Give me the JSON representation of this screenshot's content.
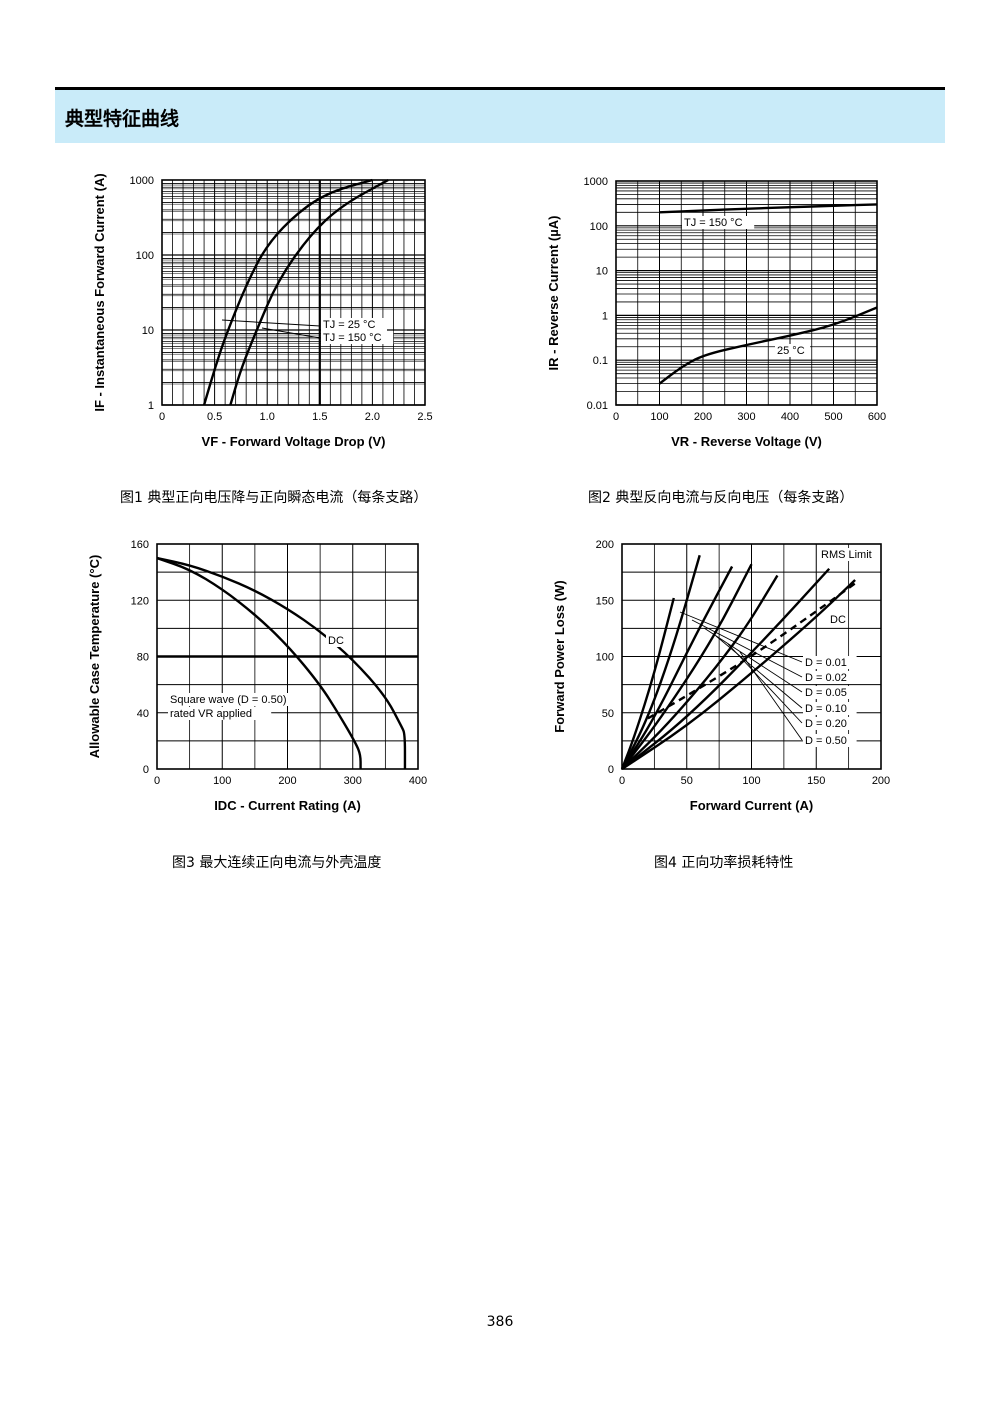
{
  "section_title": "典型特征曲线",
  "page_number": "386",
  "captions": {
    "fig1": "图1  典型正向电压降与正向瞬态电流（每条支路）",
    "fig2": "图2  典型反向电流与反向电压（每条支路）",
    "fig3": "图3  最大连续正向电流与外壳温度",
    "fig4": "图4  正向功率损耗特性"
  },
  "chart_data": [
    {
      "id": "fig1",
      "type": "line",
      "y_scale": "log",
      "xlim": [
        0,
        2.5
      ],
      "ylim": [
        1,
        1000
      ],
      "x_ticks": [
        "0",
        "0.5",
        "1.0",
        "1.5",
        "2.0",
        "2.5"
      ],
      "y_ticks": [
        "1",
        "10",
        "100",
        "1000"
      ],
      "xlabel": "VF - Forward Voltage Drop (V)",
      "ylabel": "IF - Instantaneous Forward Current (A)",
      "annotations": [
        "TJ = 25 °C",
        "TJ = 150 °C"
      ],
      "series": [
        {
          "name": "TJ = 150 °C",
          "x": [
            0.4,
            0.5,
            0.6,
            0.8,
            1.0,
            1.3,
            1.6,
            2.0
          ],
          "y": [
            1,
            3,
            8,
            40,
            140,
            380,
            700,
            1000
          ]
        },
        {
          "name": "TJ = 25 °C",
          "x": [
            0.65,
            0.75,
            0.9,
            1.1,
            1.4,
            1.7,
            2.15
          ],
          "y": [
            1,
            3,
            10,
            45,
            180,
            450,
            1000
          ]
        }
      ]
    },
    {
      "id": "fig2",
      "type": "line",
      "y_scale": "log",
      "xlim": [
        0,
        600
      ],
      "ylim": [
        0.01,
        1000
      ],
      "x_ticks": [
        "0",
        "100",
        "200",
        "300",
        "400",
        "500",
        "600"
      ],
      "y_ticks": [
        "0.01",
        "0.1",
        "1",
        "10",
        "100",
        "1000"
      ],
      "xlabel": "VR - Reverse Voltage (V)",
      "ylabel": "IR - Reverse Current (µA)",
      "annotations": [
        "TJ = 150 °C",
        "25 °C"
      ],
      "series": [
        {
          "name": "TJ = 150 °C",
          "x": [
            100,
            200,
            300,
            400,
            500,
            600
          ],
          "y": [
            200,
            220,
            240,
            260,
            280,
            300
          ]
        },
        {
          "name": "25 °C",
          "x": [
            100,
            150,
            200,
            300,
            400,
            500,
            600
          ],
          "y": [
            0.03,
            0.07,
            0.13,
            0.22,
            0.35,
            0.6,
            1.5
          ]
        }
      ]
    },
    {
      "id": "fig3",
      "type": "line",
      "xlim": [
        0,
        400
      ],
      "ylim": [
        0,
        160
      ],
      "x_ticks": [
        "0",
        "100",
        "200",
        "300",
        "400"
      ],
      "y_ticks": [
        "0",
        "40",
        "80",
        "120",
        "160"
      ],
      "xlabel": "IDC - Current Rating (A)",
      "ylabel": "Allowable Case Temperature (°C)",
      "annotations": [
        "DC",
        "Square wave (D = 0.50)",
        "rated VR applied"
      ],
      "series": [
        {
          "name": "DC",
          "x": [
            0,
            50,
            100,
            150,
            200,
            250,
            300,
            350,
            375,
            380,
            380
          ],
          "y": [
            150,
            145,
            137,
            127,
            114,
            98,
            78,
            52,
            30,
            25,
            0
          ]
        },
        {
          "name": "Square wave (D = 0.50)",
          "x": [
            0,
            50,
            100,
            150,
            200,
            250,
            280,
            305,
            312,
            312
          ],
          "y": [
            150,
            142,
            128,
            110,
            88,
            60,
            38,
            18,
            10,
            0
          ]
        }
      ]
    },
    {
      "id": "fig4",
      "type": "line",
      "xlim": [
        0,
        200
      ],
      "ylim": [
        0,
        200
      ],
      "x_ticks": [
        "0",
        "50",
        "100",
        "150",
        "200"
      ],
      "y_ticks": [
        "0",
        "50",
        "100",
        "150",
        "200"
      ],
      "xlabel": "Forward Current (A)",
      "ylabel": "Forward Power Loss (W)",
      "annotations": [
        "RMS Limit",
        "DC",
        "D = 0.01",
        "D = 0.02",
        "D = 0.05",
        "D = 0.10",
        "D = 0.20",
        "D = 0.50"
      ],
      "series": [
        {
          "name": "D = 0.01",
          "x": [
            0,
            10,
            25,
            40
          ],
          "y": [
            0,
            30,
            85,
            152
          ]
        },
        {
          "name": "D = 0.02",
          "x": [
            0,
            20,
            40,
            60
          ],
          "y": [
            0,
            45,
            110,
            190
          ]
        },
        {
          "name": "D = 0.05",
          "x": [
            0,
            25,
            55,
            85
          ],
          "y": [
            0,
            45,
            115,
            180
          ]
        },
        {
          "name": "D = 0.10",
          "x": [
            0,
            30,
            70,
            100
          ],
          "y": [
            0,
            45,
            115,
            182
          ]
        },
        {
          "name": "D = 0.20",
          "x": [
            0,
            40,
            90,
            120
          ],
          "y": [
            0,
            45,
            115,
            172
          ]
        },
        {
          "name": "D = 0.50",
          "x": [
            0,
            50,
            110,
            160
          ],
          "y": [
            0,
            45,
            115,
            178
          ]
        },
        {
          "name": "DC",
          "x": [
            0,
            50,
            100,
            150,
            180
          ],
          "y": [
            0,
            38,
            85,
            135,
            168
          ]
        },
        {
          "name": "RMS Limit",
          "x": [
            20,
            50,
            100,
            150,
            180
          ],
          "y": [
            45,
            65,
            100,
            140,
            165
          ]
        }
      ]
    }
  ]
}
